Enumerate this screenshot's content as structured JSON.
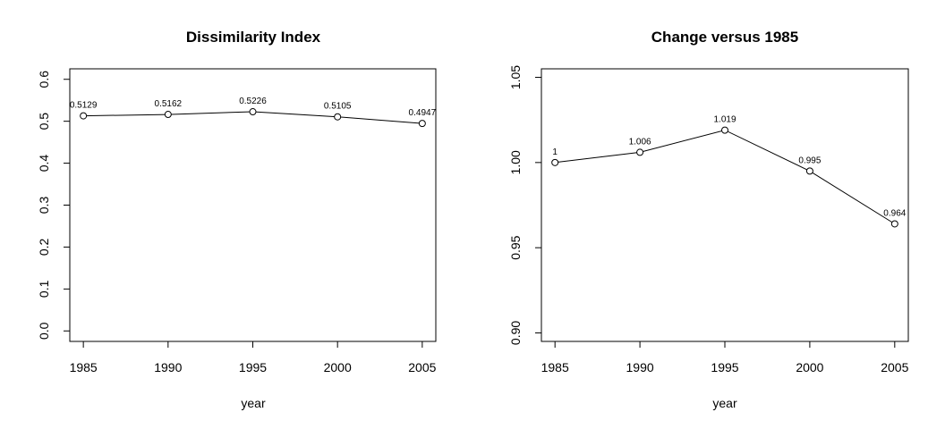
{
  "chart_data": [
    {
      "type": "line",
      "title": "Dissimilarity Index",
      "xlabel": "year",
      "ylabel": "",
      "x": [
        1985,
        1990,
        1995,
        2000,
        2005
      ],
      "y": [
        0.5129,
        0.5162,
        0.5226,
        0.5105,
        0.4947
      ],
      "point_labels": [
        "0.5129",
        "0.5162",
        "0.5226",
        "0.5105",
        "0.4947"
      ],
      "xlim": [
        1984.2,
        2005.8
      ],
      "ylim": [
        -0.025,
        0.625
      ],
      "xticks": [
        1985,
        1990,
        1995,
        2000,
        2005
      ],
      "xtick_labels": [
        "1985",
        "1990",
        "1995",
        "2000",
        "2005"
      ],
      "yticks": [
        0.0,
        0.1,
        0.2,
        0.3,
        0.4,
        0.5,
        0.6
      ],
      "ytick_labels": [
        "0.0",
        "0.1",
        "0.2",
        "0.3",
        "0.4",
        "0.5",
        "0.6"
      ],
      "grid": false,
      "marker": "open-circle"
    },
    {
      "type": "line",
      "title": "Change versus 1985",
      "xlabel": "year",
      "ylabel": "",
      "x": [
        1985,
        1990,
        1995,
        2000,
        2005
      ],
      "y": [
        1.0,
        1.006,
        1.019,
        0.995,
        0.964
      ],
      "point_labels": [
        "1",
        "1.006",
        "1.019",
        "0.995",
        "0.964"
      ],
      "xlim": [
        1984.2,
        2005.8
      ],
      "ylim": [
        0.895,
        1.055
      ],
      "xticks": [
        1985,
        1990,
        1995,
        2000,
        2005
      ],
      "xtick_labels": [
        "1985",
        "1990",
        "1995",
        "2000",
        "2005"
      ],
      "yticks": [
        0.9,
        0.95,
        1.0,
        1.05
      ],
      "ytick_labels": [
        "0.90",
        "0.95",
        "1.00",
        "1.05"
      ],
      "grid": false,
      "marker": "open-circle"
    }
  ]
}
